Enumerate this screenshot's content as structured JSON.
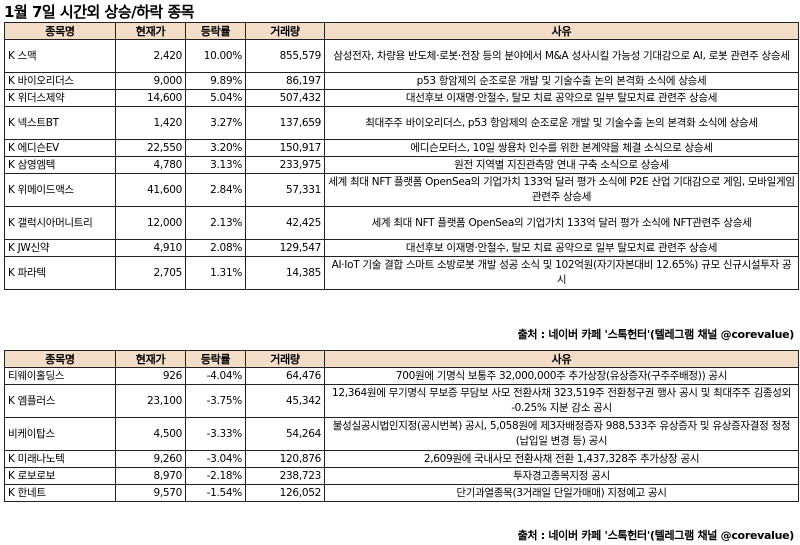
{
  "title": "1월 7일  시간외 상승/하락 종목",
  "headers": {
    "name": "종목명",
    "price": "현재가",
    "change": "등락률",
    "volume": "거래량",
    "reason": "사유"
  },
  "rising": [
    {
      "name": "K 스맥",
      "price": "2,420",
      "change": "10.00%",
      "volume": "855,579",
      "reason": "삼성전자, 차량용 반도체·로봇·전장 등의 분야에서 M&A 성사시킬 가능성 기대감으로 AI, 로봇 관련주 상승세"
    },
    {
      "name": "K 바이오리더스",
      "price": "9,000",
      "change": "9.89%",
      "volume": "86,197",
      "reason": "p53 항암제의 순조로운 개발 및 기술수출 논의 본격화 소식에 상승세"
    },
    {
      "name": "K 위더스제약",
      "price": "14,600",
      "change": "5.04%",
      "volume": "507,432",
      "reason": "대선후보 이재명·안철수, 탈모 치료 공약으로 일부 탈모치료 관련주 상승세"
    },
    {
      "name": "K 넥스트BT",
      "price": "1,420",
      "change": "3.27%",
      "volume": "137,659",
      "reason": "최대주주 바이오리더스, p53 항암제의 순조로운 개발 및 기술수출 논의 본격화 소식에 상승세"
    },
    {
      "name": "K 에디슨EV",
      "price": "22,550",
      "change": "3.20%",
      "volume": "150,917",
      "reason": "에디슨모터스, 10일 쌍용차 인수를 위한 본계약을 체결 소식으로 상승세"
    },
    {
      "name": "K 삼영엠텍",
      "price": "4,780",
      "change": "3.13%",
      "volume": "233,975",
      "reason": "원전 지역별 지진관측망 연내 구축 소식으로 상승세"
    },
    {
      "name": "K 위메이드맥스",
      "price": "41,600",
      "change": "2.84%",
      "volume": "57,331",
      "reason": "세계 최대 NFT 플랫폼 OpenSea의 기업가치 133억 달러 평가 소식에 P2E 산업 기대감으로 게임, 모바일게임 관련주 상승세"
    },
    {
      "name": "K 갤럭시아머니트리",
      "price": "12,000",
      "change": "2.13%",
      "volume": "42,425",
      "reason": "세계 최대 NFT 플랫폼 OpenSea의 기업가치 133억 달러 평가 소식에 NFT관련주 상승세"
    },
    {
      "name": "K JW신약",
      "price": "4,910",
      "change": "2.08%",
      "volume": "129,547",
      "reason": "대선후보 이재명·안철수, 탈모 치료 공약으로 일부 탈모치료 관련주 상승세"
    },
    {
      "name": "K 파라텍",
      "price": "2,705",
      "change": "1.31%",
      "volume": "14,385",
      "reason": "AI·IoT 기술 결합 스마트 소방로봇 개발 성공 소식 및 102억원(자기자본대비 12.65%) 규모 신규시설투자 공시"
    }
  ],
  "falling": [
    {
      "name": "티웨이홀딩스",
      "price": "926",
      "change": "-4.04%",
      "volume": "64,476",
      "reason": "700원에 기명식 보통주 32,000,000주 추가상장(유상증자(구주주배정)) 공시"
    },
    {
      "name": "K 엠플러스",
      "price": "23,100",
      "change": "-3.75%",
      "volume": "45,342",
      "reason": "12,364원에 무기명식 무보증 무담보 사모 전환사채 323,519주 전환청구권 행사 공시 및 최대주주 김종성외 -0.25% 지분 감소 공시"
    },
    {
      "name": "비케이탑스",
      "price": "4,500",
      "change": "-3.33%",
      "volume": "54,264",
      "reason": "불성실공시법인지정(공시번복) 공시, 5,058원에 제3자배정증자 988,533주 유상증자 및 유상증자결정 정정(납입일 변경 등) 공시"
    },
    {
      "name": "K 미래나노텍",
      "price": "9,260",
      "change": "-3.04%",
      "volume": "120,876",
      "reason": "2,609원에 국내사모 전환사채 전환 1,437,328주 추가상장 공시"
    },
    {
      "name": "K 로보로보",
      "price": "8,970",
      "change": "-2.18%",
      "volume": "238,723",
      "reason": "투자경고종목지정 공시"
    },
    {
      "name": "K 한네트",
      "price": "9,570",
      "change": "-1.54%",
      "volume": "126,052",
      "reason": "단기과열종목(3거래일 단일가매매) 지정예고 공시"
    }
  ],
  "source": "출처 : 네이버 카페 '스톡헌터'(텔레그램 채널 @corevalue)"
}
